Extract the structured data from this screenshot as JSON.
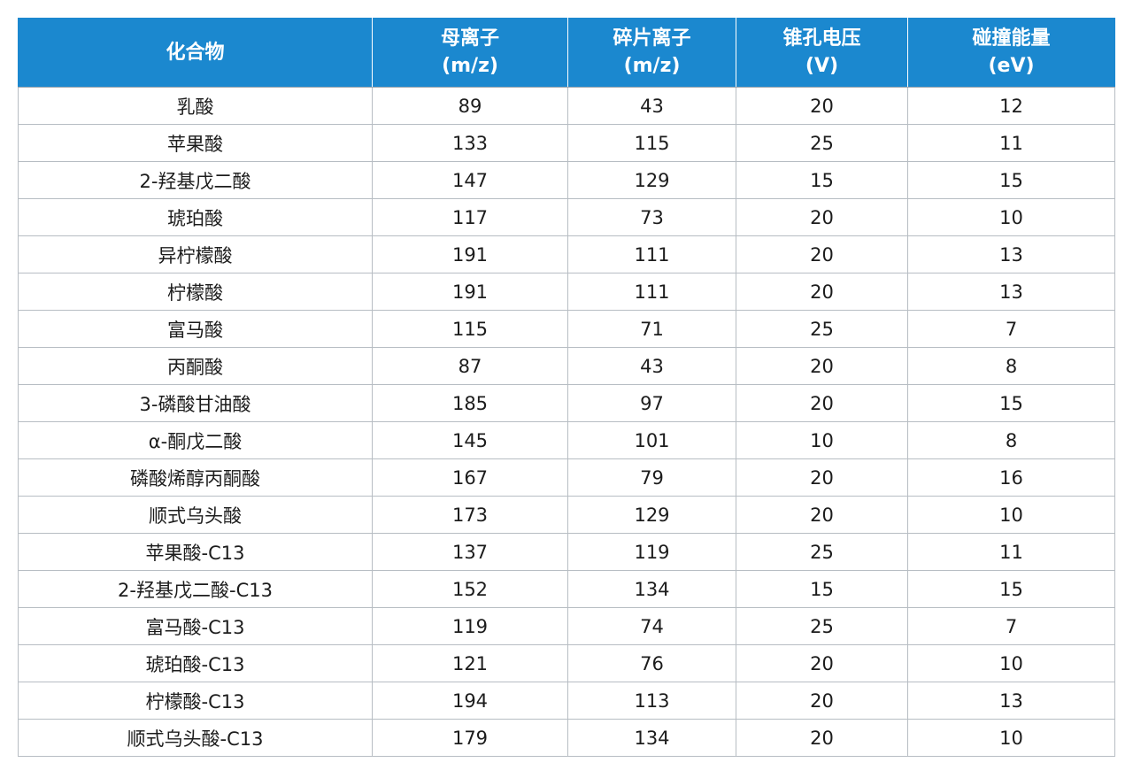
{
  "table": {
    "headers": [
      {
        "line1": "化合物",
        "line2": ""
      },
      {
        "line1": "母离子",
        "line2": "(m/z)"
      },
      {
        "line1": "碎片离子",
        "line2": "(m/z)"
      },
      {
        "line1": "锥孔电压",
        "line2": "(V)"
      },
      {
        "line1": "碰撞能量",
        "line2": "(eV)"
      }
    ],
    "rows": [
      [
        "乳酸",
        "89",
        "43",
        "20",
        "12"
      ],
      [
        "苹果酸",
        "133",
        "115",
        "25",
        "11"
      ],
      [
        "2-羟基戊二酸",
        "147",
        "129",
        "15",
        "15"
      ],
      [
        "琥珀酸",
        "117",
        "73",
        "20",
        "10"
      ],
      [
        "异柠檬酸",
        "191",
        "111",
        "20",
        "13"
      ],
      [
        "柠檬酸",
        "191",
        "111",
        "20",
        "13"
      ],
      [
        "富马酸",
        "115",
        "71",
        "25",
        "7"
      ],
      [
        "丙酮酸",
        "87",
        "43",
        "20",
        "8"
      ],
      [
        "3-磷酸甘油酸",
        "185",
        "97",
        "20",
        "15"
      ],
      [
        "α-酮戊二酸",
        "145",
        "101",
        "10",
        "8"
      ],
      [
        "磷酸烯醇丙酮酸",
        "167",
        "79",
        "20",
        "16"
      ],
      [
        "顺式乌头酸",
        "173",
        "129",
        "20",
        "10"
      ],
      [
        "苹果酸-C13",
        "137",
        "119",
        "25",
        "11"
      ],
      [
        "2-羟基戊二酸-C13",
        "152",
        "134",
        "15",
        "15"
      ],
      [
        "富马酸-C13",
        "119",
        "74",
        "25",
        "7"
      ],
      [
        "琥珀酸-C13",
        "121",
        "76",
        "20",
        "10"
      ],
      [
        "柠檬酸-C13",
        "194",
        "113",
        "20",
        "13"
      ],
      [
        "顺式乌头酸-C13",
        "179",
        "134",
        "20",
        "10"
      ]
    ]
  },
  "colors": {
    "header_bg": "#1b88cf",
    "header_text": "#ffffff",
    "grid_line": "#b7bdc3"
  }
}
